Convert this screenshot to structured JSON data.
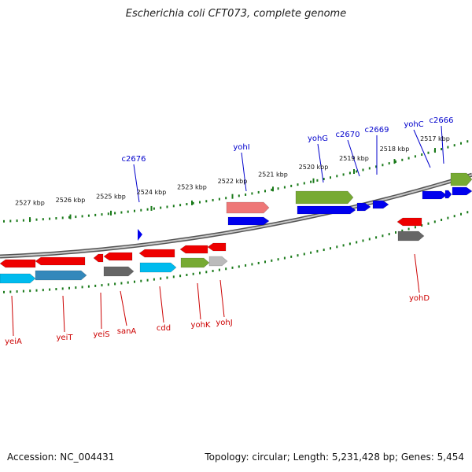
{
  "title": "Escherichia coli CFT073, complete genome",
  "footer": {
    "accession": "Accession: NC_004431",
    "summary": "Topology: circular; Length: 5,231,428 bp; Genes: 5,454"
  },
  "colors": {
    "forward_gene": "#0000ee",
    "reverse_gene": "#ee0000",
    "forward_label": "#0000cc",
    "reverse_label": "#cc0000",
    "tick": "#1a7a1a",
    "backbone": "#777777"
  },
  "kbp_markers": [
    {
      "label": "2527 kbp",
      "pos": 2527
    },
    {
      "label": "2526 kbp",
      "pos": 2526
    },
    {
      "label": "2525 kbp",
      "pos": 2525
    },
    {
      "label": "2524 kbp",
      "pos": 2524
    },
    {
      "label": "2523 kbp",
      "pos": 2523
    },
    {
      "label": "2522 kbp",
      "pos": 2522
    },
    {
      "label": "2521 kbp",
      "pos": 2521
    },
    {
      "label": "2520 kbp",
      "pos": 2520
    },
    {
      "label": "2519 kbp",
      "pos": 2519
    },
    {
      "label": "2518 kbp",
      "pos": 2518
    },
    {
      "label": "2517 kbp",
      "pos": 2517
    }
  ],
  "forward_labels": [
    "c2676",
    "yohI",
    "yohG",
    "c2670",
    "c2669",
    "yohC",
    "c2666"
  ],
  "reverse_labels": [
    "yeiA",
    "yeiT",
    "yeiS",
    "sanA",
    "cdd",
    "yohK",
    "yohJ",
    "yohD"
  ]
}
